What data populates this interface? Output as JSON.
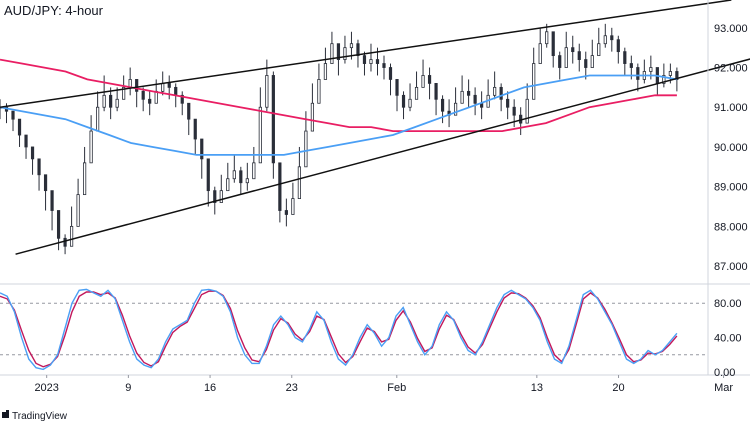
{
  "chart_data": {
    "type": "candlestick",
    "title": "AUD/JPY: 4-hour",
    "brand": "TradingView",
    "price_axis": {
      "range": [
        86.6,
        93.7
      ],
      "ticks": [
        "93.000",
        "92.000",
        "91.000",
        "90.000",
        "89.000",
        "88.000",
        "87.000"
      ],
      "tick_values": [
        93,
        92,
        91,
        90,
        89,
        88,
        87
      ]
    },
    "oscillator_axis": {
      "range": [
        0,
        100
      ],
      "ticks": [
        "80.00",
        "40.00",
        "0.00"
      ],
      "tick_values": [
        80,
        40,
        0
      ],
      "guides": [
        80,
        20
      ]
    },
    "time_axis": {
      "range": [
        0,
        45.5
      ],
      "labels": [
        "2023",
        "9",
        "16",
        "23",
        "Feb",
        "13",
        "20",
        "Mar"
      ],
      "label_days": [
        2,
        9,
        16,
        23,
        32,
        44,
        51,
        60
      ]
    },
    "x_start_day": 0,
    "x_end_day": 58,
    "price_close": [
      91.0,
      90.9,
      90.7,
      90.3,
      90.0,
      89.7,
      89.3,
      88.9,
      88.4,
      87.7,
      87.5,
      88.0,
      88.8,
      89.6,
      90.4,
      91.0,
      91.3,
      91.0,
      91.2,
      91.5,
      91.7,
      91.4,
      91.2,
      91.1,
      91.4,
      91.6,
      91.5,
      91.3,
      91.1,
      90.7,
      90.2,
      89.7,
      88.9,
      88.6,
      88.9,
      89.2,
      89.4,
      89.1,
      89.2,
      89.6,
      91.0,
      91.8,
      89.6,
      88.4,
      88.3,
      88.7,
      89.5,
      90.4,
      91.1,
      91.7,
      92.1,
      92.6,
      92.2,
      92.5,
      92.6,
      92.3,
      92.1,
      92.2,
      92.1,
      92.0,
      91.7,
      91.3,
      91.0,
      91.2,
      91.5,
      91.8,
      91.6,
      91.2,
      90.9,
      90.8,
      91.1,
      91.4,
      91.3,
      91.1,
      91.0,
      91.3,
      91.5,
      91.2,
      91.0,
      90.8,
      90.6,
      91.2,
      92.1,
      92.6,
      92.9,
      92.3,
      92.0,
      92.5,
      92.4,
      92.2,
      92.0,
      92.3,
      92.6,
      92.8,
      92.7,
      92.4,
      92.1,
      92.0,
      91.7,
      91.9,
      92.0,
      91.6,
      91.8,
      91.9,
      91.7
    ],
    "price_high": [
      91.2,
      91.1,
      90.9,
      90.6,
      90.3,
      90.0,
      89.6,
      89.2,
      88.8,
      88.2,
      87.8,
      88.5,
      89.2,
      90.0,
      90.8,
      91.4,
      91.8,
      91.5,
      91.5,
      91.8,
      92.0,
      91.7,
      91.5,
      91.4,
      91.7,
      91.9,
      91.8,
      91.6,
      91.4,
      91.0,
      90.6,
      90.1,
      89.4,
      89.0,
      89.3,
      89.6,
      89.8,
      89.5,
      89.6,
      90.0,
      91.5,
      92.2,
      91.9,
      89.0,
      88.7,
      89.1,
      90.0,
      90.9,
      91.6,
      92.1,
      92.5,
      92.9,
      92.6,
      92.8,
      92.9,
      92.7,
      92.4,
      92.6,
      92.5,
      92.3,
      92.1,
      91.7,
      91.4,
      91.6,
      91.9,
      92.2,
      92.0,
      91.6,
      91.3,
      91.2,
      91.5,
      91.8,
      91.7,
      91.5,
      91.4,
      91.7,
      91.9,
      91.6,
      91.4,
      91.2,
      91.0,
      91.6,
      92.5,
      93.0,
      93.1,
      92.8,
      92.4,
      92.9,
      92.8,
      92.6,
      92.4,
      92.7,
      93.0,
      93.1,
      93.0,
      92.8,
      92.5,
      92.3,
      92.1,
      92.2,
      92.3,
      92.0,
      92.1,
      92.1,
      92.0
    ],
    "price_low": [
      90.7,
      90.6,
      90.4,
      90.0,
      89.7,
      89.3,
      88.9,
      88.4,
      87.9,
      87.4,
      87.3,
      87.7,
      88.4,
      89.2,
      90.0,
      90.6,
      90.9,
      90.7,
      90.9,
      91.2,
      91.3,
      91.0,
      90.9,
      90.8,
      91.1,
      91.3,
      91.2,
      91.0,
      90.8,
      90.3,
      89.8,
      89.2,
      88.5,
      88.3,
      88.6,
      88.9,
      89.1,
      88.8,
      88.9,
      89.2,
      90.2,
      90.9,
      89.2,
      88.1,
      88.0,
      88.3,
      89.0,
      89.9,
      90.7,
      91.3,
      91.8,
      92.2,
      91.8,
      92.1,
      92.2,
      92.0,
      91.8,
      91.9,
      91.8,
      91.7,
      91.3,
      90.9,
      90.7,
      90.9,
      91.2,
      91.5,
      91.2,
      90.8,
      90.6,
      90.5,
      90.8,
      91.1,
      91.0,
      90.8,
      90.7,
      91.0,
      91.2,
      90.9,
      90.7,
      90.5,
      90.3,
      90.8,
      91.7,
      92.2,
      92.5,
      92.0,
      91.7,
      92.1,
      92.1,
      91.9,
      91.7,
      92.0,
      92.3,
      92.5,
      92.4,
      92.1,
      91.8,
      91.7,
      91.4,
      91.6,
      91.7,
      91.3,
      91.5,
      91.6,
      91.4
    ],
    "ma_blue": [
      91.0,
      90.9,
      90.8,
      90.7,
      90.5,
      90.3,
      90.1,
      90.0,
      89.9,
      89.8,
      89.8,
      89.8,
      89.8,
      89.8,
      89.9,
      90.0,
      90.1,
      90.2,
      90.3,
      90.5,
      90.7,
      90.9,
      91.1,
      91.3,
      91.5,
      91.6,
      91.7,
      91.8,
      91.8,
      91.8,
      91.8,
      91.7
    ],
    "ma_pink": [
      92.2,
      92.1,
      92.0,
      91.9,
      91.7,
      91.6,
      91.5,
      91.4,
      91.3,
      91.2,
      91.1,
      91.0,
      90.9,
      90.8,
      90.7,
      90.6,
      90.5,
      90.5,
      90.4,
      90.4,
      90.4,
      90.4,
      90.4,
      90.4,
      90.5,
      90.6,
      90.8,
      91.0,
      91.1,
      91.2,
      91.3,
      91.3
    ],
    "upper_trendline": [
      [
        0,
        91.0
      ],
      [
        47,
        93.7
      ]
    ],
    "lower_trendline": [
      [
        1,
        87.3
      ],
      [
        50,
        92.4
      ]
    ],
    "stochastic_k": [
      92,
      88,
      70,
      40,
      15,
      5,
      3,
      8,
      20,
      50,
      80,
      95,
      96,
      92,
      88,
      95,
      85,
      60,
      35,
      15,
      8,
      5,
      15,
      35,
      50,
      55,
      60,
      80,
      95,
      96,
      94,
      88,
      70,
      40,
      20,
      10,
      10,
      30,
      55,
      65,
      55,
      40,
      35,
      50,
      70,
      60,
      35,
      15,
      8,
      20,
      40,
      55,
      45,
      30,
      40,
      65,
      75,
      55,
      35,
      20,
      30,
      55,
      70,
      60,
      40,
      25,
      20,
      35,
      55,
      75,
      90,
      95,
      90,
      85,
      75,
      60,
      35,
      15,
      10,
      30,
      60,
      90,
      95,
      85,
      70,
      55,
      35,
      15,
      10,
      15,
      25,
      20,
      25,
      35,
      45
    ],
    "stochastic_d": [
      88,
      85,
      72,
      48,
      25,
      10,
      6,
      9,
      18,
      42,
      70,
      88,
      93,
      93,
      90,
      92,
      86,
      66,
      42,
      22,
      11,
      7,
      12,
      30,
      46,
      53,
      58,
      74,
      90,
      94,
      94,
      89,
      74,
      48,
      28,
      14,
      12,
      26,
      49,
      62,
      57,
      44,
      37,
      47,
      65,
      61,
      41,
      21,
      11,
      18,
      35,
      51,
      47,
      35,
      38,
      60,
      71,
      58,
      39,
      24,
      28,
      50,
      66,
      61,
      44,
      29,
      22,
      32,
      51,
      70,
      86,
      92,
      91,
      86,
      77,
      63,
      40,
      20,
      12,
      26,
      55,
      85,
      92,
      86,
      73,
      57,
      39,
      20,
      12,
      14,
      22,
      21,
      24,
      32,
      42
    ],
    "colors": {
      "candles": "#2a2e39",
      "trendlines": "#111111",
      "ma_blue": "#4a9ff5",
      "ma_pink": "#e91e63",
      "stochastic_k": "#4a9ff5",
      "stochastic_d": "#c2185b",
      "grid_guides": "#9598a1"
    },
    "grid": false
  }
}
